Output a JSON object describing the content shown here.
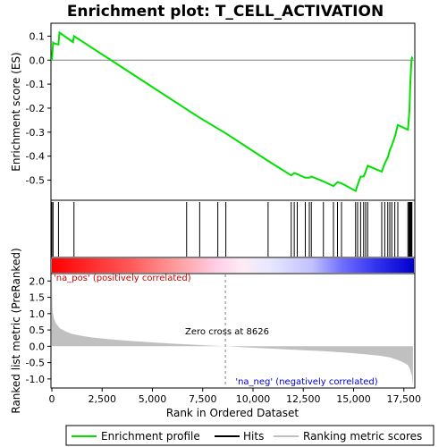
{
  "chart_data": {
    "type": "line",
    "title": "Enrichment plot: T_CELL_ACTIVATION",
    "xlabel": "Rank in Ordered Dataset",
    "ylabel_top": "Enrichment score (ES)",
    "ylabel_bottom": "Ranked list metric (PreRanked)",
    "xlim": [
      0,
      18000
    ],
    "x_ticks": [
      0,
      2500,
      5000,
      7500,
      10000,
      12500,
      15000,
      17500
    ],
    "x_tick_labels": [
      "0",
      "2,500",
      "5,000",
      "7,500",
      "10,000",
      "12,500",
      "15,000",
      "17,500"
    ],
    "es_ylim": [
      -0.58,
      0.15
    ],
    "es_ticks": [
      0.1,
      0.0,
      -0.1,
      -0.2,
      -0.3,
      -0.4,
      -0.5
    ],
    "es_tick_labels": [
      "0.1",
      "0.0",
      "-0.1",
      "-0.2",
      "-0.3",
      "-0.4",
      "-0.5"
    ],
    "metric_ylim": [
      -1.25,
      2.2
    ],
    "metric_ticks": [
      2.0,
      1.5,
      1.0,
      0.5,
      0.0,
      -0.5,
      -1.0
    ],
    "metric_tick_labels": [
      "2.0",
      "1.5",
      "1.0",
      "0.5",
      "0.0",
      "-0.5",
      "-1.0"
    ],
    "zero_cross": 8626,
    "zero_cross_label": "Zero cross at 8626",
    "pos_label": "'na_pos' (positively correlated)",
    "neg_label": "'na_neg' (negatively correlated)",
    "enrichment_profile": {
      "x": [
        0,
        60,
        100,
        330,
        380,
        1050,
        1100,
        6700,
        7350,
        8250,
        8650,
        10750,
        11900,
        12050,
        12200,
        12600,
        12800,
        12900,
        13500,
        14000,
        14200,
        14400,
        15100,
        15200,
        15350,
        15500,
        15600,
        15700,
        16400,
        16550,
        16700,
        16800,
        16900,
        17050,
        17200,
        17700,
        17750,
        17780,
        17800,
        17820,
        17850,
        17880,
        17900,
        17950
      ],
      "y": [
        0.0,
        0.073,
        0.07,
        0.065,
        0.115,
        0.075,
        0.1,
        -0.205,
        -0.24,
        -0.285,
        -0.305,
        -0.42,
        -0.48,
        -0.47,
        -0.475,
        -0.49,
        -0.49,
        -0.485,
        -0.505,
        -0.525,
        -0.508,
        -0.513,
        -0.545,
        -0.52,
        -0.485,
        -0.485,
        -0.465,
        -0.44,
        -0.465,
        -0.43,
        -0.405,
        -0.375,
        -0.355,
        -0.32,
        -0.27,
        -0.29,
        -0.24,
        -0.2,
        -0.15,
        -0.1,
        -0.05,
        0.0,
        0.01,
        0.005
      ]
    },
    "hits": [
      0,
      60,
      330,
      1100,
      6700,
      7350,
      8250,
      8650,
      10750,
      11900,
      12050,
      12200,
      12600,
      12800,
      12900,
      13500,
      14000,
      14200,
      14400,
      15100,
      15200,
      15350,
      15500,
      15600,
      15700,
      16400,
      16550,
      16700,
      16800,
      16900,
      17050,
      17200,
      17700,
      17750,
      17780,
      17800,
      17820,
      17850,
      17880,
      17900
    ],
    "ranked_metric_shape": {
      "x": [
        0,
        30,
        100,
        200,
        400,
        700,
        1000,
        1500,
        2000,
        3000,
        4000,
        5000,
        6000,
        7000,
        8000,
        8626,
        9500,
        10500,
        11500,
        12500,
        13500,
        14500,
        15500,
        16300,
        16800,
        17200,
        17500,
        17700,
        17800,
        17900,
        17950
      ],
      "y": [
        2.25,
        1.1,
        0.85,
        0.7,
        0.55,
        0.45,
        0.38,
        0.32,
        0.27,
        0.21,
        0.16,
        0.12,
        0.08,
        0.05,
        0.02,
        0.0,
        -0.03,
        -0.06,
        -0.09,
        -0.12,
        -0.15,
        -0.19,
        -0.24,
        -0.29,
        -0.34,
        -0.42,
        -0.5,
        -0.58,
        -0.7,
        -0.9,
        -1.25
      ]
    },
    "legend": [
      {
        "label": "Enrichment profile",
        "color": "#00e000"
      },
      {
        "label": "Hits",
        "color": "#000000"
      },
      {
        "label": "Ranking metric scores",
        "color": "#c0c0c0"
      }
    ],
    "colors": {
      "profile": "#00e000",
      "hits": "#000000",
      "metric_fill": "#c0c0c0",
      "zero_line": "#808080",
      "pos_text": "#cc0000",
      "neg_text": "#0000cc",
      "bar_red": "#ff0000",
      "bar_blue": "#0000ff"
    }
  }
}
